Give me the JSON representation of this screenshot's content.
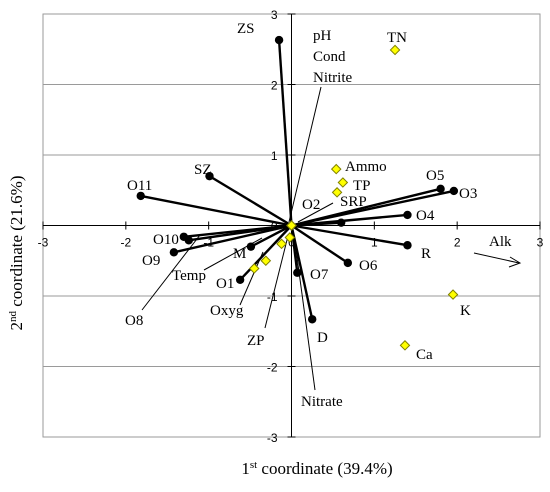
{
  "chart_data": {
    "type": "scatter",
    "xlabel_prefix": "1",
    "xlabel_sup": "st",
    "xlabel_rest": " coordinate (39.4%)",
    "ylabel_prefix": "2",
    "ylabel_sup": "nd",
    "ylabel_rest": " coordinate (21.6%)",
    "xlim": [
      -3,
      3
    ],
    "ylim": [
      -3,
      3
    ],
    "grid": "horizontal",
    "x_ticks": [
      -3,
      -2,
      -1,
      0,
      1,
      2,
      3
    ],
    "y_ticks": [
      3,
      2,
      1,
      0,
      -1,
      -2,
      -3
    ],
    "tick_labels_x": [
      "-3",
      "-2",
      "-1",
      "0",
      "1",
      "2",
      "3"
    ],
    "tick_labels_y": [
      "3",
      "2",
      "1",
      "0",
      "-1",
      "-2",
      "-3"
    ],
    "sites": [
      {
        "label": "ZS",
        "x": -0.15,
        "y": 2.63
      },
      {
        "label": "SZ",
        "x": -0.99,
        "y": 0.7
      },
      {
        "label": "O11",
        "x": -1.82,
        "y": 0.42
      },
      {
        "label": "O10",
        "x": -1.3,
        "y": -0.16
      },
      {
        "label": "O9",
        "x": -1.42,
        "y": -0.38
      },
      {
        "label": "O8",
        "x": -1.24,
        "y": -0.21
      },
      {
        "label": "M",
        "x": -0.49,
        "y": -0.3
      },
      {
        "label": "O1",
        "x": -0.62,
        "y": -0.77
      },
      {
        "label": "O7",
        "x": 0.07,
        "y": -0.67
      },
      {
        "label": "D",
        "x": 0.25,
        "y": -1.33
      },
      {
        "label": "O6",
        "x": 0.68,
        "y": -0.53
      },
      {
        "label": "O2",
        "x": 0.6,
        "y": 0.04
      },
      {
        "label": "O4",
        "x": 1.4,
        "y": 0.15
      },
      {
        "label": "O5",
        "x": 1.8,
        "y": 0.52
      },
      {
        "label": "O3",
        "x": 1.96,
        "y": 0.49
      },
      {
        "label": "R",
        "x": 1.4,
        "y": -0.28
      }
    ],
    "variables": [
      {
        "label": "TN",
        "x": 1.25,
        "y": 2.49
      },
      {
        "label": "Ammo",
        "x": 0.54,
        "y": 0.8
      },
      {
        "label": "TP",
        "x": 0.62,
        "y": 0.61
      },
      {
        "label": "SRP",
        "x": 0.55,
        "y": 0.47
      },
      {
        "label": "K",
        "x": 1.95,
        "y": -0.98
      },
      {
        "label": "Ca",
        "x": 1.37,
        "y": -1.7
      },
      {
        "label": "ZP",
        "x": -0.31,
        "y": -0.5
      },
      {
        "label": "Oxyg",
        "x": -0.45,
        "y": -0.61
      },
      {
        "label": "Temp",
        "x": -0.12,
        "y": -0.26
      },
      {
        "label": "pH",
        "x": 0.0,
        "y": 0.0
      },
      {
        "label": "Cond",
        "x": 0.0,
        "y": 0.0
      },
      {
        "label": "Nitrite",
        "x": 0.0,
        "y": 0.0
      },
      {
        "label": "Nitrate",
        "x": -0.02,
        "y": -0.17
      }
    ],
    "alk_label": "Alk",
    "site_color": "#000000",
    "variable_fill": "#ffff00",
    "variable_stroke": "#808000"
  }
}
